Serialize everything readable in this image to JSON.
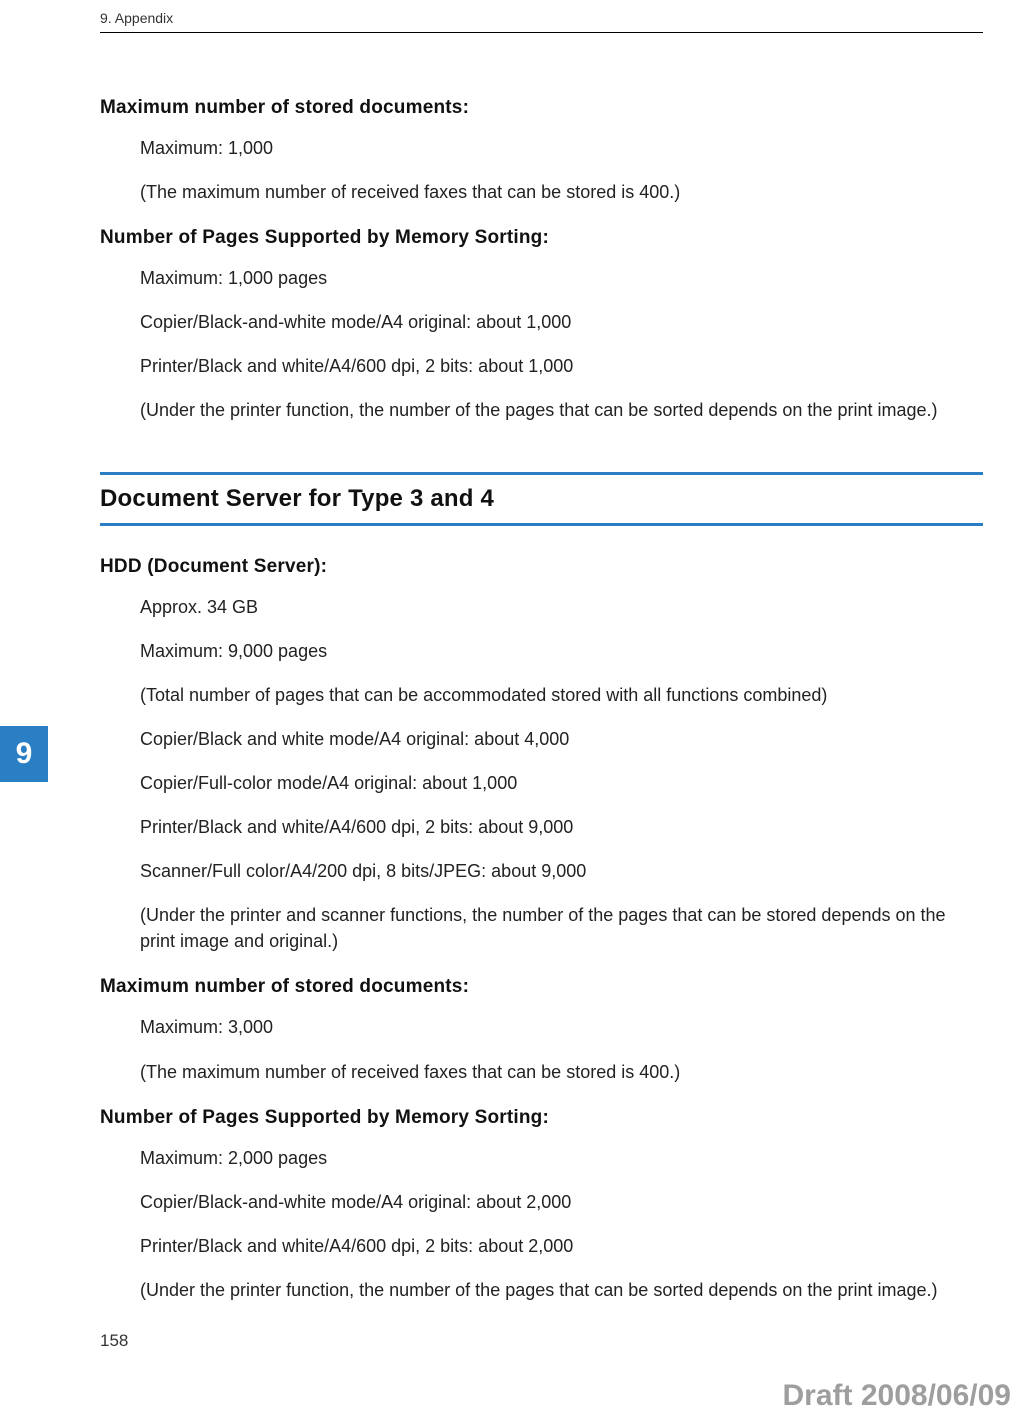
{
  "header": {
    "text": "9. Appendix"
  },
  "section1": {
    "h1": "Maximum number of stored documents:",
    "p1": "Maximum: 1,000",
    "p2": "(The maximum number of received faxes that can be stored is 400.)",
    "h2": "Number of Pages Supported by Memory Sorting:",
    "p3": "Maximum: 1,000 pages",
    "p4": "Copier/Black-and-white mode/A4 original: about 1,000",
    "p5": "Printer/Black and white/A4/600 dpi, 2 bits: about 1,000",
    "p6": "(Under the printer function, the number of the pages that can be sorted depends on the print image.)"
  },
  "sectionTitle": "Document Server for Type 3 and 4",
  "section2": {
    "h1": "HDD (Document Server):",
    "p1": "Approx. 34 GB",
    "p2": "Maximum: 9,000 pages",
    "p3": "(Total number of pages that can be accommodated stored with all functions combined)",
    "p4": "Copier/Black and white mode/A4 original: about 4,000",
    "p5": "Copier/Full-color mode/A4 original: about 1,000",
    "p6": "Printer/Black and white/A4/600 dpi, 2 bits: about 9,000",
    "p7": "Scanner/Full color/A4/200 dpi, 8 bits/JPEG: about 9,000",
    "p8": "(Under the printer and scanner functions, the number of the pages that can be stored depends on the print image and original.)",
    "h2": "Maximum number of stored documents:",
    "p9": "Maximum: 3,000",
    "p10": "(The maximum number of received faxes that can be stored is 400.)",
    "h3": "Number of Pages Supported by Memory Sorting:",
    "p11": "Maximum: 2,000 pages",
    "p12": "Copier/Black-and-white mode/A4 original: about 2,000",
    "p13": "Printer/Black and white/A4/600 dpi, 2 bits: about 2,000",
    "p14": "(Under the printer function, the number of the pages that can be sorted depends on the print image.)"
  },
  "chapterTab": "9",
  "pageNumber": "158",
  "draft": "Draft 2008/06/09",
  "colors": {
    "accent": "#2a7ec3",
    "text": "#000000",
    "muted": "#9e9e9e",
    "bg": "#ffffff"
  }
}
